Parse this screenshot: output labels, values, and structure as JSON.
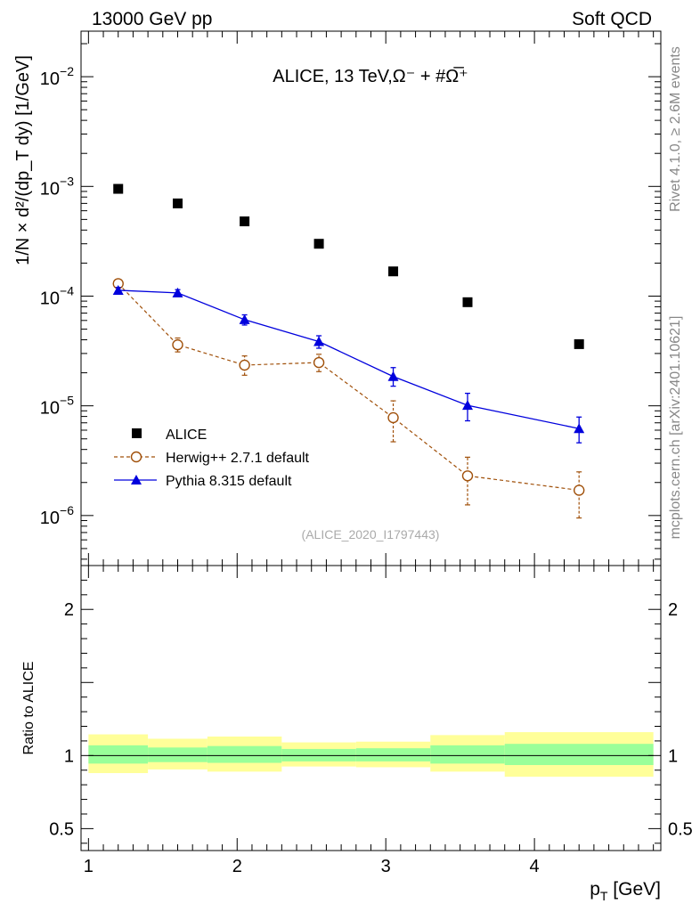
{
  "header": {
    "left": "13000 GeV pp",
    "right": "Soft QCD"
  },
  "side_labels": {
    "rivet": "Rivet 4.1.0, ≥ 2.6M events",
    "mcplots": "mcplots.cern.ch [arXiv:2401.10621]"
  },
  "colors": {
    "alice": "#000000",
    "herwig": "#a0500a",
    "pythia": "#0000dd",
    "band_inner": "#99ff99",
    "band_outer": "#ffff99"
  },
  "chart_data": [
    {
      "type": "scatter",
      "title": "ALICE, 13 TeV,Ω⁻ + #Ω̅⁺",
      "analysis_tag": "(ALICE_2020_I1797443)",
      "ylabel": "1/N × d²/(dp_T dy) [1/GeV]",
      "yscale": "log",
      "ylim": [
        3.5e-07,
        0.026
      ],
      "xlim": [
        0.95,
        4.85
      ],
      "y_ticks": [
        {
          "value": 1e-06,
          "base": "10",
          "exp": "−6"
        },
        {
          "value": 1e-05,
          "base": "10",
          "exp": "−5"
        },
        {
          "value": 0.0001,
          "base": "10",
          "exp": "−4"
        },
        {
          "value": 0.001,
          "base": "10",
          "exp": "−3"
        },
        {
          "value": 0.01,
          "base": "10",
          "exp": "−2"
        }
      ],
      "series": [
        {
          "name": "ALICE",
          "marker": "square",
          "x": [
            1.2,
            1.6,
            2.05,
            2.55,
            3.05,
            3.55,
            4.3
          ],
          "y": [
            0.00095,
            0.0007,
            0.00048,
            0.0003,
            0.000168,
            8.8e-05,
            3.65e-05
          ]
        },
        {
          "name": "Herwig++ 2.7.1 default",
          "marker": "open-circle",
          "line": "dashed",
          "x": [
            1.2,
            1.6,
            2.05,
            2.55,
            3.05,
            3.55,
            4.3
          ],
          "y": [
            0.00013,
            3.6e-05,
            2.35e-05,
            2.48e-05,
            7.8e-06,
            2.3e-06,
            1.7e-06
          ],
          "y_low": [
            0.000125,
            3.1e-05,
            1.9e-05,
            2.05e-05,
            4.7e-06,
            1.25e-06,
            9.5e-07
          ],
          "y_high": [
            0.000136,
            4.15e-05,
            2.85e-05,
            2.95e-05,
            1.11e-05,
            3.4e-06,
            2.5e-06
          ]
        },
        {
          "name": "Pythia 8.315 default",
          "marker": "filled-triangle",
          "line": "solid",
          "x": [
            1.2,
            1.6,
            2.05,
            2.55,
            3.05,
            3.55,
            4.3
          ],
          "y": [
            0.000113,
            0.000107,
            6.1e-05,
            3.85e-05,
            1.85e-05,
            1.01e-05,
            6.2e-06
          ],
          "y_low": [
            0.000106,
            9.95e-05,
            5.45e-05,
            3.35e-05,
            1.51e-05,
            7.3e-06,
            4.6e-06
          ],
          "y_high": [
            0.00012,
            0.0001145,
            6.75e-05,
            4.35e-05,
            2.23e-05,
            1.3e-05,
            7.9e-06
          ]
        }
      ]
    },
    {
      "type": "area",
      "ylabel": "Ratio to ALICE",
      "xlabel": "p_T [GeV]",
      "xlim": [
        0.95,
        4.85
      ],
      "ylim": [
        0.35,
        2.3
      ],
      "y_ticks": [
        "0.5",
        "1",
        "2"
      ],
      "x_ticks": [
        "1",
        "2",
        "3",
        "4"
      ],
      "reference": 1,
      "bins": [
        {
          "x_low": 1.0,
          "x_high": 1.4,
          "inner_low": 0.945,
          "inner_high": 1.07,
          "outer_low": 0.88,
          "outer_high": 1.145
        },
        {
          "x_low": 1.4,
          "x_high": 1.8,
          "inner_low": 0.955,
          "inner_high": 1.055,
          "outer_low": 0.905,
          "outer_high": 1.115
        },
        {
          "x_low": 1.8,
          "x_high": 2.3,
          "inner_low": 0.95,
          "inner_high": 1.065,
          "outer_low": 0.89,
          "outer_high": 1.13
        },
        {
          "x_low": 2.3,
          "x_high": 2.8,
          "inner_low": 0.96,
          "inner_high": 1.045,
          "outer_low": 0.925,
          "outer_high": 1.09
        },
        {
          "x_low": 2.8,
          "x_high": 3.3,
          "inner_low": 0.96,
          "inner_high": 1.05,
          "outer_low": 0.92,
          "outer_high": 1.095
        },
        {
          "x_low": 3.3,
          "x_high": 3.8,
          "inner_low": 0.945,
          "inner_high": 1.07,
          "outer_low": 0.89,
          "outer_high": 1.14
        },
        {
          "x_low": 3.8,
          "x_high": 4.8,
          "inner_low": 0.935,
          "inner_high": 1.08,
          "outer_low": 0.855,
          "outer_high": 1.16
        }
      ]
    }
  ]
}
